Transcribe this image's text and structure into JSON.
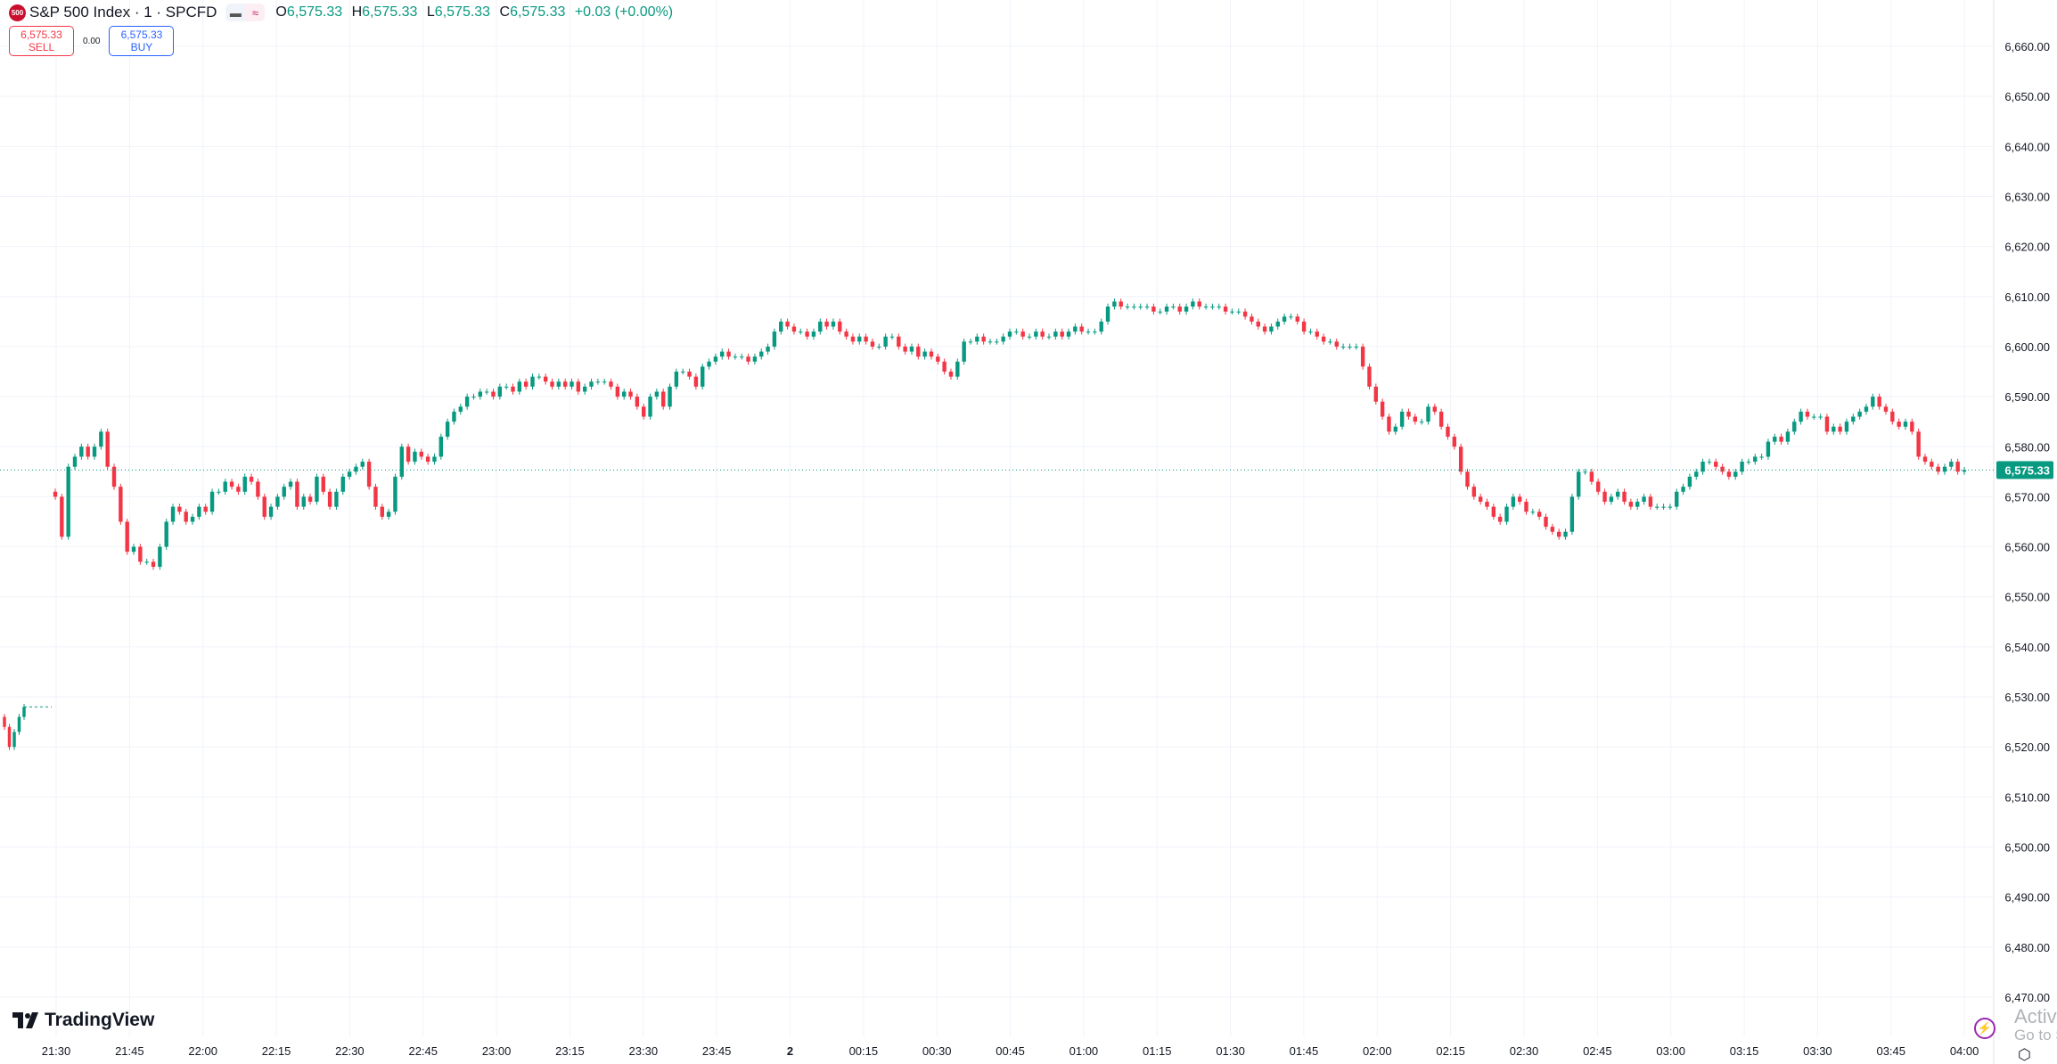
{
  "header": {
    "logo_text": "500",
    "symbol": "S&P 500 Index · 1 · SPCFD",
    "ohlc": {
      "o_label": "O",
      "o": "6,575.33",
      "h_label": "H",
      "h": "6,575.33",
      "l_label": "L",
      "l": "6,575.33",
      "c_label": "C",
      "c": "6,575.33",
      "change": "+0.03 (+0.00%)"
    },
    "icons": [
      "minus-icon",
      "approx-icon"
    ]
  },
  "trade": {
    "sell_price": "6,575.33",
    "sell_label": "SELL",
    "spread": "0.00",
    "buy_price": "6,575.33",
    "buy_label": "BUY"
  },
  "branding": {
    "name": "TradingView"
  },
  "watermark": {
    "line1": "Activa",
    "line2": "Go to S"
  },
  "colors": {
    "up": "#089981",
    "down": "#f23645",
    "grid": "#f0f3fa",
    "last_price": "#089981"
  },
  "chart_data": {
    "type": "candlestick",
    "timeframe": "1",
    "x_tick_labels": [
      "21:30",
      "21:45",
      "22:00",
      "22:15",
      "22:30",
      "22:45",
      "23:00",
      "23:15",
      "23:30",
      "23:45",
      "2",
      "00:15",
      "00:30",
      "00:45",
      "01:00",
      "01:15",
      "01:30",
      "01:45",
      "02:00",
      "02:15",
      "02:30",
      "02:45",
      "03:00",
      "03:15",
      "03:30",
      "03:45",
      "04:00"
    ],
    "y_tick_labels": [
      "6,660.00",
      "6,650.00",
      "6,640.00",
      "6,630.00",
      "6,620.00",
      "6,610.00",
      "6,600.00",
      "6,590.00",
      "6,580.00",
      "6,570.00",
      "6,560.00",
      "6,550.00",
      "6,540.00",
      "6,530.00",
      "6,520.00",
      "6,510.00",
      "6,500.00",
      "6,490.00",
      "6,480.00",
      "6,470.00"
    ],
    "ylim": [
      6470,
      6660
    ],
    "grid": true,
    "last_price": 6575.33,
    "last_price_label": "6,575.33",
    "pre_gap_closes": [
      6524,
      6520,
      6523,
      6526,
      6528
    ],
    "closes": [
      6570,
      6562,
      6576,
      6578,
      6580,
      6578,
      6580,
      6583,
      6576,
      6572,
      6565,
      6559,
      6560,
      6557,
      6557,
      6556,
      6560,
      6565,
      6568,
      6567,
      6565,
      6566,
      6568,
      6567,
      6571,
      6571,
      6573,
      6572,
      6571,
      6574,
      6573,
      6570,
      6566,
      6568,
      6570,
      6572,
      6573,
      6568,
      6570,
      6569,
      6574,
      6571,
      6568,
      6571,
      6574,
      6575,
      6576,
      6577,
      6572,
      6568,
      6566,
      6567,
      6574,
      6580,
      6577,
      6579,
      6578,
      6577,
      6578,
      6582,
      6585,
      6587,
      6588,
      6590,
      6590,
      6591,
      6591,
      6590,
      6592,
      6592,
      6591,
      6593,
      6592,
      6594,
      6594,
      6593,
      6592,
      6593,
      6592,
      6593,
      6591,
      6592,
      6593,
      6593,
      6593,
      6592,
      6590,
      6591,
      6590,
      6588,
      6586,
      6590,
      6591,
      6588,
      6592,
      6595,
      6595,
      6594,
      6592,
      6596,
      6597,
      6598,
      6599,
      6598,
      6598,
      6598,
      6597,
      6598,
      6599,
      6600,
      6603,
      6605,
      6604,
      6603,
      6603,
      6602,
      6603,
      6605,
      6604,
      6605,
      6603,
      6602,
      6601,
      6602,
      6601,
      6600,
      6600,
      6602,
      6602,
      6600,
      6599,
      6600,
      6598,
      6599,
      6598,
      6597,
      6595,
      6594,
      6597,
      6601,
      6601,
      6602,
      6601,
      6601,
      6601,
      6602,
      6603,
      6603,
      6602,
      6602,
      6603,
      6602,
      6602,
      6603,
      6602,
      6603,
      6604,
      6603,
      6603,
      6603,
      6605,
      6608,
      6609,
      6608,
      6608,
      6608,
      6608,
      6608,
      6607,
      6607,
      6608,
      6608,
      6607,
      6608,
      6609,
      6608,
      6608,
      6608,
      6608,
      6607,
      6607,
      6607,
      6606,
      6605,
      6604,
      6603,
      6604,
      6605,
      6606,
      6606,
      6605,
      6603,
      6603,
      6602,
      6601,
      6601,
      6600,
      6600,
      6600,
      6600,
      6596,
      6592,
      6589,
      6586,
      6583,
      6584,
      6587,
      6586,
      6585,
      6585,
      6588,
      6587,
      6584,
      6582,
      6580,
      6575,
      6572,
      6570,
      6569,
      6568,
      6566,
      6565,
      6568,
      6570,
      6569,
      6567,
      6567,
      6566,
      6564,
      6563,
      6562,
      6563,
      6570,
      6575,
      6575,
      6573,
      6571,
      6569,
      6570,
      6571,
      6569,
      6568,
      6569,
      6570,
      6568,
      6568,
      6568,
      6568,
      6571,
      6572,
      6574,
      6575,
      6577,
      6577,
      6576,
      6575,
      6574,
      6575,
      6577,
      6577,
      6578,
      6578,
      6581,
      6582,
      6581,
      6583,
      6585,
      6587,
      6586,
      6586,
      6586,
      6583,
      6584,
      6583,
      6585,
      6586,
      6587,
      6588,
      6590,
      6588,
      6587,
      6585,
      6584,
      6585,
      6583,
      6578,
      6577,
      6576,
      6575,
      6576,
      6577,
      6575,
      6575.33
    ]
  }
}
